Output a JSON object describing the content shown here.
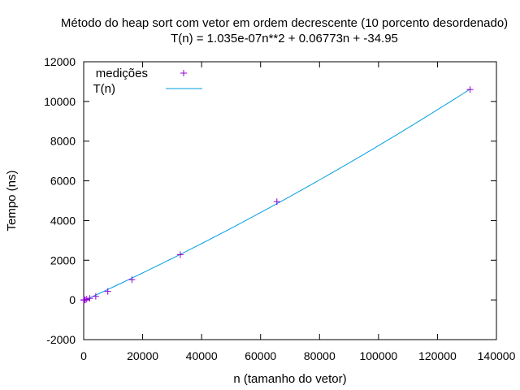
{
  "chart_data": {
    "type": "scatter",
    "title": "Método do heap sort com vetor em ordem decrescente (10 porcento desordenado)",
    "subtitle": "T(n) = 1.035e-07n**2 + 0.06773n + -34.95",
    "xlabel": "n (tamanho do vetor)",
    "ylabel": "Tempo (ns)",
    "xlim": [
      0,
      140000
    ],
    "ylim": [
      -2000,
      12000
    ],
    "x_ticks": [
      "0",
      "20000",
      "40000",
      "60000",
      "80000",
      "100000",
      "120000",
      "140000"
    ],
    "y_ticks": [
      "-2000",
      "0",
      "2000",
      "4000",
      "6000",
      "8000",
      "10000",
      "12000"
    ],
    "grid": false,
    "legend_position": "top-left",
    "series": [
      {
        "name": "medições",
        "kind": "points",
        "marker": "+",
        "color": "#9400d3",
        "x": [
          16,
          32,
          64,
          128,
          256,
          512,
          1024,
          2048,
          4096,
          8192,
          16384,
          32768,
          65536,
          131072
        ],
        "y": [
          0,
          0,
          0,
          0,
          0,
          5,
          40,
          80,
          180,
          430,
          1020,
          2280,
          4950,
          10600
        ]
      },
      {
        "name": "T(n)",
        "kind": "fit-line",
        "color": "#009ee0",
        "coefficients": {
          "a": 1.035e-07,
          "b": 0.06773,
          "c": -34.95
        },
        "x_range": [
          0,
          131072
        ]
      }
    ]
  }
}
